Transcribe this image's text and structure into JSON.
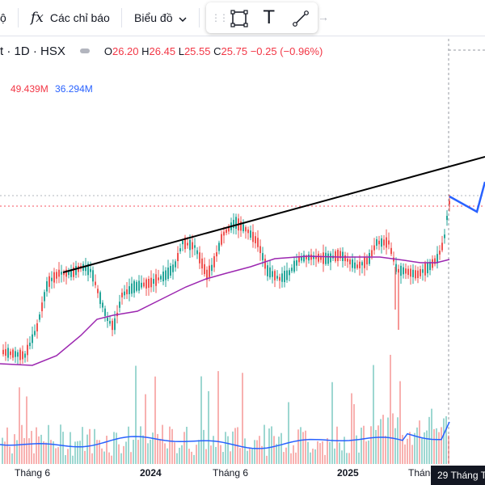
{
  "toolbar": {
    "partial_left_icon": "ộ",
    "fx_icon": "fx",
    "indicators_label": "Các chỉ báo",
    "chart_type_label": "Biểu đồ",
    "chevron": "⌄"
  },
  "drawing_tools": {
    "drag_handle": "⋮⋮",
    "rectangle_icon": "rectangle-icon",
    "text_icon": "T",
    "line_icon": "line-icon",
    "arrow_icon": "→"
  },
  "legend": {
    "symbol_partial": "t · 1D · HSX",
    "open_label": "O",
    "open": "26.20",
    "high_label": "H",
    "high": "26.45",
    "low_label": "L",
    "low": "25.55",
    "close_label": "C",
    "close": "25.75",
    "change": "−0.25 (−0.96%)",
    "vol1": "49.439M",
    "vol2": "36.294M"
  },
  "time_axis": {
    "labels": [
      "Tháng 6",
      "2024",
      "Tháng 6",
      "2025",
      "Tháng"
    ],
    "crosshair_date": "29 Tháng T"
  },
  "colors": {
    "up": "#26a69a",
    "down": "#ef5350",
    "ma": "#9c27b0",
    "volume_ma": "#2962ff",
    "trendline": "#000000",
    "projection": "#2962ff"
  },
  "chart_data": {
    "type": "candlestick",
    "price_ma_visible": true,
    "trendline": true,
    "projection_path": true,
    "volume_panel": true,
    "last_close": 25.75
  }
}
